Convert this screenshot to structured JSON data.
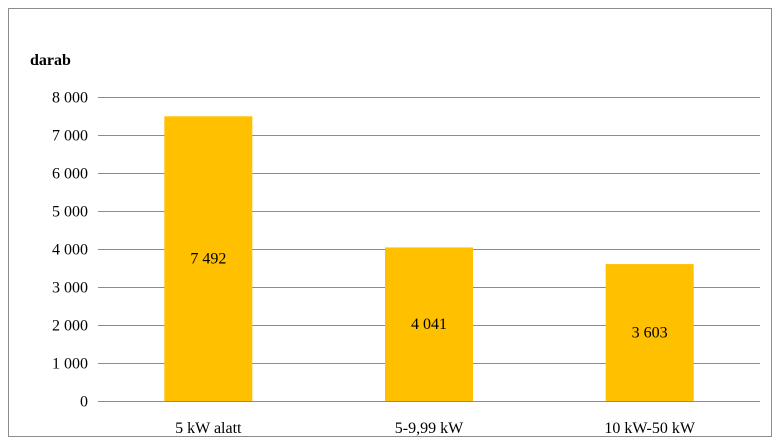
{
  "chart_data": {
    "type": "bar",
    "ylabel": "darab",
    "categories": [
      "5 kW alatt",
      "5-9,99 kW",
      "10 kW-50 kW"
    ],
    "values": [
      7492,
      4041,
      3603
    ],
    "data_labels": [
      "7 492",
      "4 041",
      "3 603"
    ],
    "ylim": [
      0,
      8000
    ],
    "yticks": [
      0,
      1000,
      2000,
      3000,
      4000,
      5000,
      6000,
      7000,
      8000
    ],
    "ytick_labels": [
      "0",
      "1 000",
      "2 000",
      "3 000",
      "4 000",
      "5 000",
      "6 000",
      "7 000",
      "8 000"
    ],
    "grid": true,
    "legend": "none",
    "bar_color": "#FFC000",
    "grid_color": "#8c8c8c"
  }
}
